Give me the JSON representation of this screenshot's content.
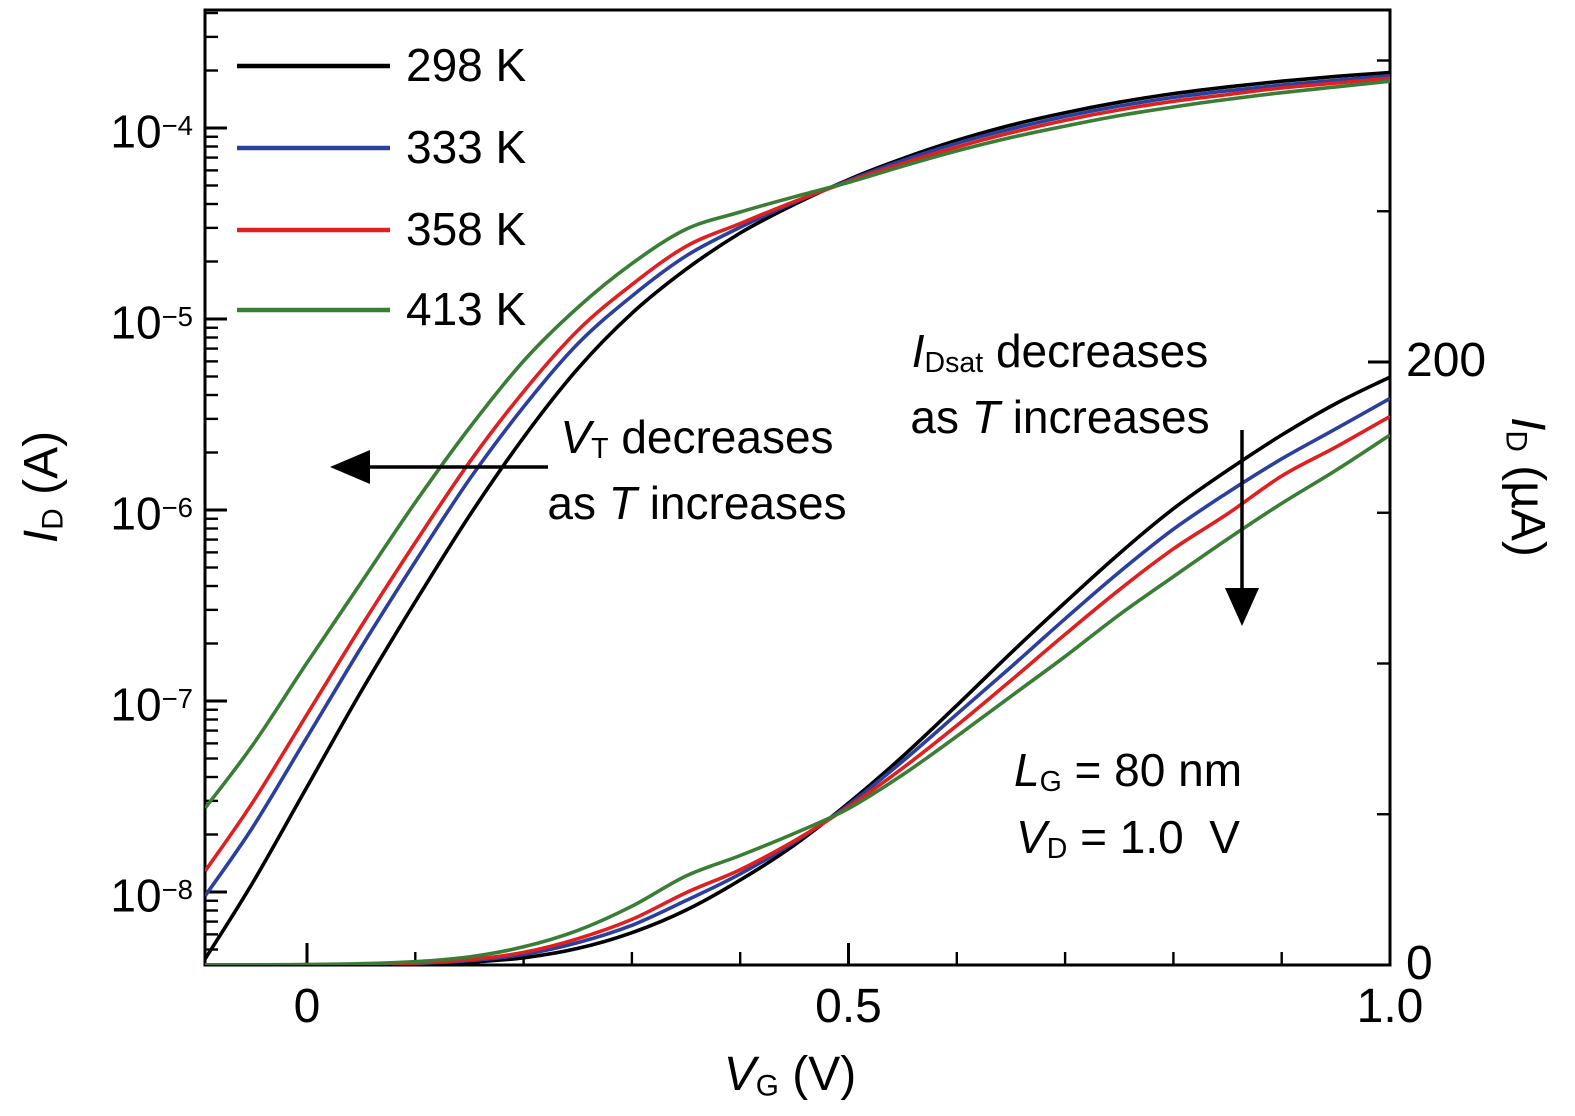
{
  "chart_data": {
    "type": "line",
    "title": "",
    "xlabel": {
      "var": "V",
      "sub": "G",
      "rest": " (V)"
    },
    "ylabel_left": {
      "var": "I",
      "sub": "D",
      "rest": " (A)"
    },
    "ylabel_right": {
      "var": "I",
      "sub": "D",
      "rest": " (µA)"
    },
    "x_axis": {
      "min": -0.094,
      "max": 1.0,
      "ticks": [
        {
          "v": 0,
          "label": "0"
        },
        {
          "v": 0.5,
          "label": "0.5"
        },
        {
          "v": 1.0,
          "label": "1.0"
        }
      ],
      "minor_tick_step": 0.1
    },
    "left_axis": {
      "scale": "log",
      "units": "A",
      "min": 4.2e-09,
      "max": 0.00042,
      "ticks": [
        {
          "exp": -4,
          "base": "10",
          "sup": "−4"
        },
        {
          "exp": -5,
          "base": "10",
          "sup": "−5"
        },
        {
          "exp": -6,
          "base": "10",
          "sup": "−6"
        },
        {
          "exp": -7,
          "base": "10",
          "sup": "−7"
        },
        {
          "exp": -8,
          "base": "10",
          "sup": "−8"
        }
      ]
    },
    "right_axis": {
      "scale": "linear",
      "units": "µA",
      "min": 0,
      "max": 317,
      "ticks": [
        {
          "v": 200,
          "label": "200"
        },
        {
          "v": 0,
          "label": "0"
        }
      ],
      "minor_tick_step": 50
    },
    "x": [
      -0.094,
      -0.05,
      0,
      0.05,
      0.1,
      0.15,
      0.2,
      0.25,
      0.3,
      0.35,
      0.4,
      0.45,
      0.5,
      0.55,
      0.6,
      0.65,
      0.7,
      0.75,
      0.8,
      0.85,
      0.9,
      0.95,
      1.0
    ],
    "series": [
      {
        "name": "298 K",
        "color": "#000000",
        "log10_id": [
          -8.35,
          -7.95,
          -7.45,
          -6.95,
          -6.48,
          -6.03,
          -5.62,
          -5.26,
          -4.97,
          -4.74,
          -4.55,
          -4.4,
          -4.27,
          -4.16,
          -4.065,
          -3.985,
          -3.92,
          -3.865,
          -3.82,
          -3.785,
          -3.755,
          -3.73,
          -3.71
        ]
      },
      {
        "name": "333 K",
        "color": "#2b3f9e",
        "log10_id": [
          -8.02,
          -7.66,
          -7.19,
          -6.72,
          -6.27,
          -5.84,
          -5.46,
          -5.13,
          -4.88,
          -4.67,
          -4.52,
          -4.39,
          -4.275,
          -4.17,
          -4.08,
          -4.005,
          -3.94,
          -3.885,
          -3.84,
          -3.805,
          -3.775,
          -3.75,
          -3.726
        ]
      },
      {
        "name": "358 K",
        "color": "#e02020",
        "log10_id": [
          -7.89,
          -7.53,
          -7.07,
          -6.61,
          -6.17,
          -5.75,
          -5.38,
          -5.06,
          -4.82,
          -4.62,
          -4.5,
          -4.385,
          -4.28,
          -4.185,
          -4.1,
          -4.025,
          -3.96,
          -3.905,
          -3.86,
          -3.825,
          -3.79,
          -3.765,
          -3.74
        ]
      },
      {
        "name": "413 K",
        "color": "#3a7d35",
        "log10_id": [
          -7.56,
          -7.23,
          -6.8,
          -6.38,
          -5.96,
          -5.57,
          -5.22,
          -4.94,
          -4.71,
          -4.53,
          -4.44,
          -4.36,
          -4.285,
          -4.2,
          -4.12,
          -4.05,
          -3.99,
          -3.935,
          -3.89,
          -3.85,
          -3.815,
          -3.785,
          -3.755
        ]
      }
    ],
    "annotations": {
      "vt": {
        "var": "V",
        "sub": "T",
        "rest": " decreases",
        "line2_pre": "as ",
        "line2_var": "T",
        "line2_rest": " increases"
      },
      "idsat": {
        "var": "I",
        "sub": "Dsat",
        "rest": " decreases",
        "line2_pre": "as ",
        "line2_var": "T",
        "line2_rest": " increases"
      },
      "device": {
        "lg": {
          "var": "L",
          "sub": "G",
          "rest": " = 80 nm"
        },
        "vd": {
          "var": "V",
          "sub": "D",
          "rest": " = 1.0  V"
        }
      }
    }
  }
}
